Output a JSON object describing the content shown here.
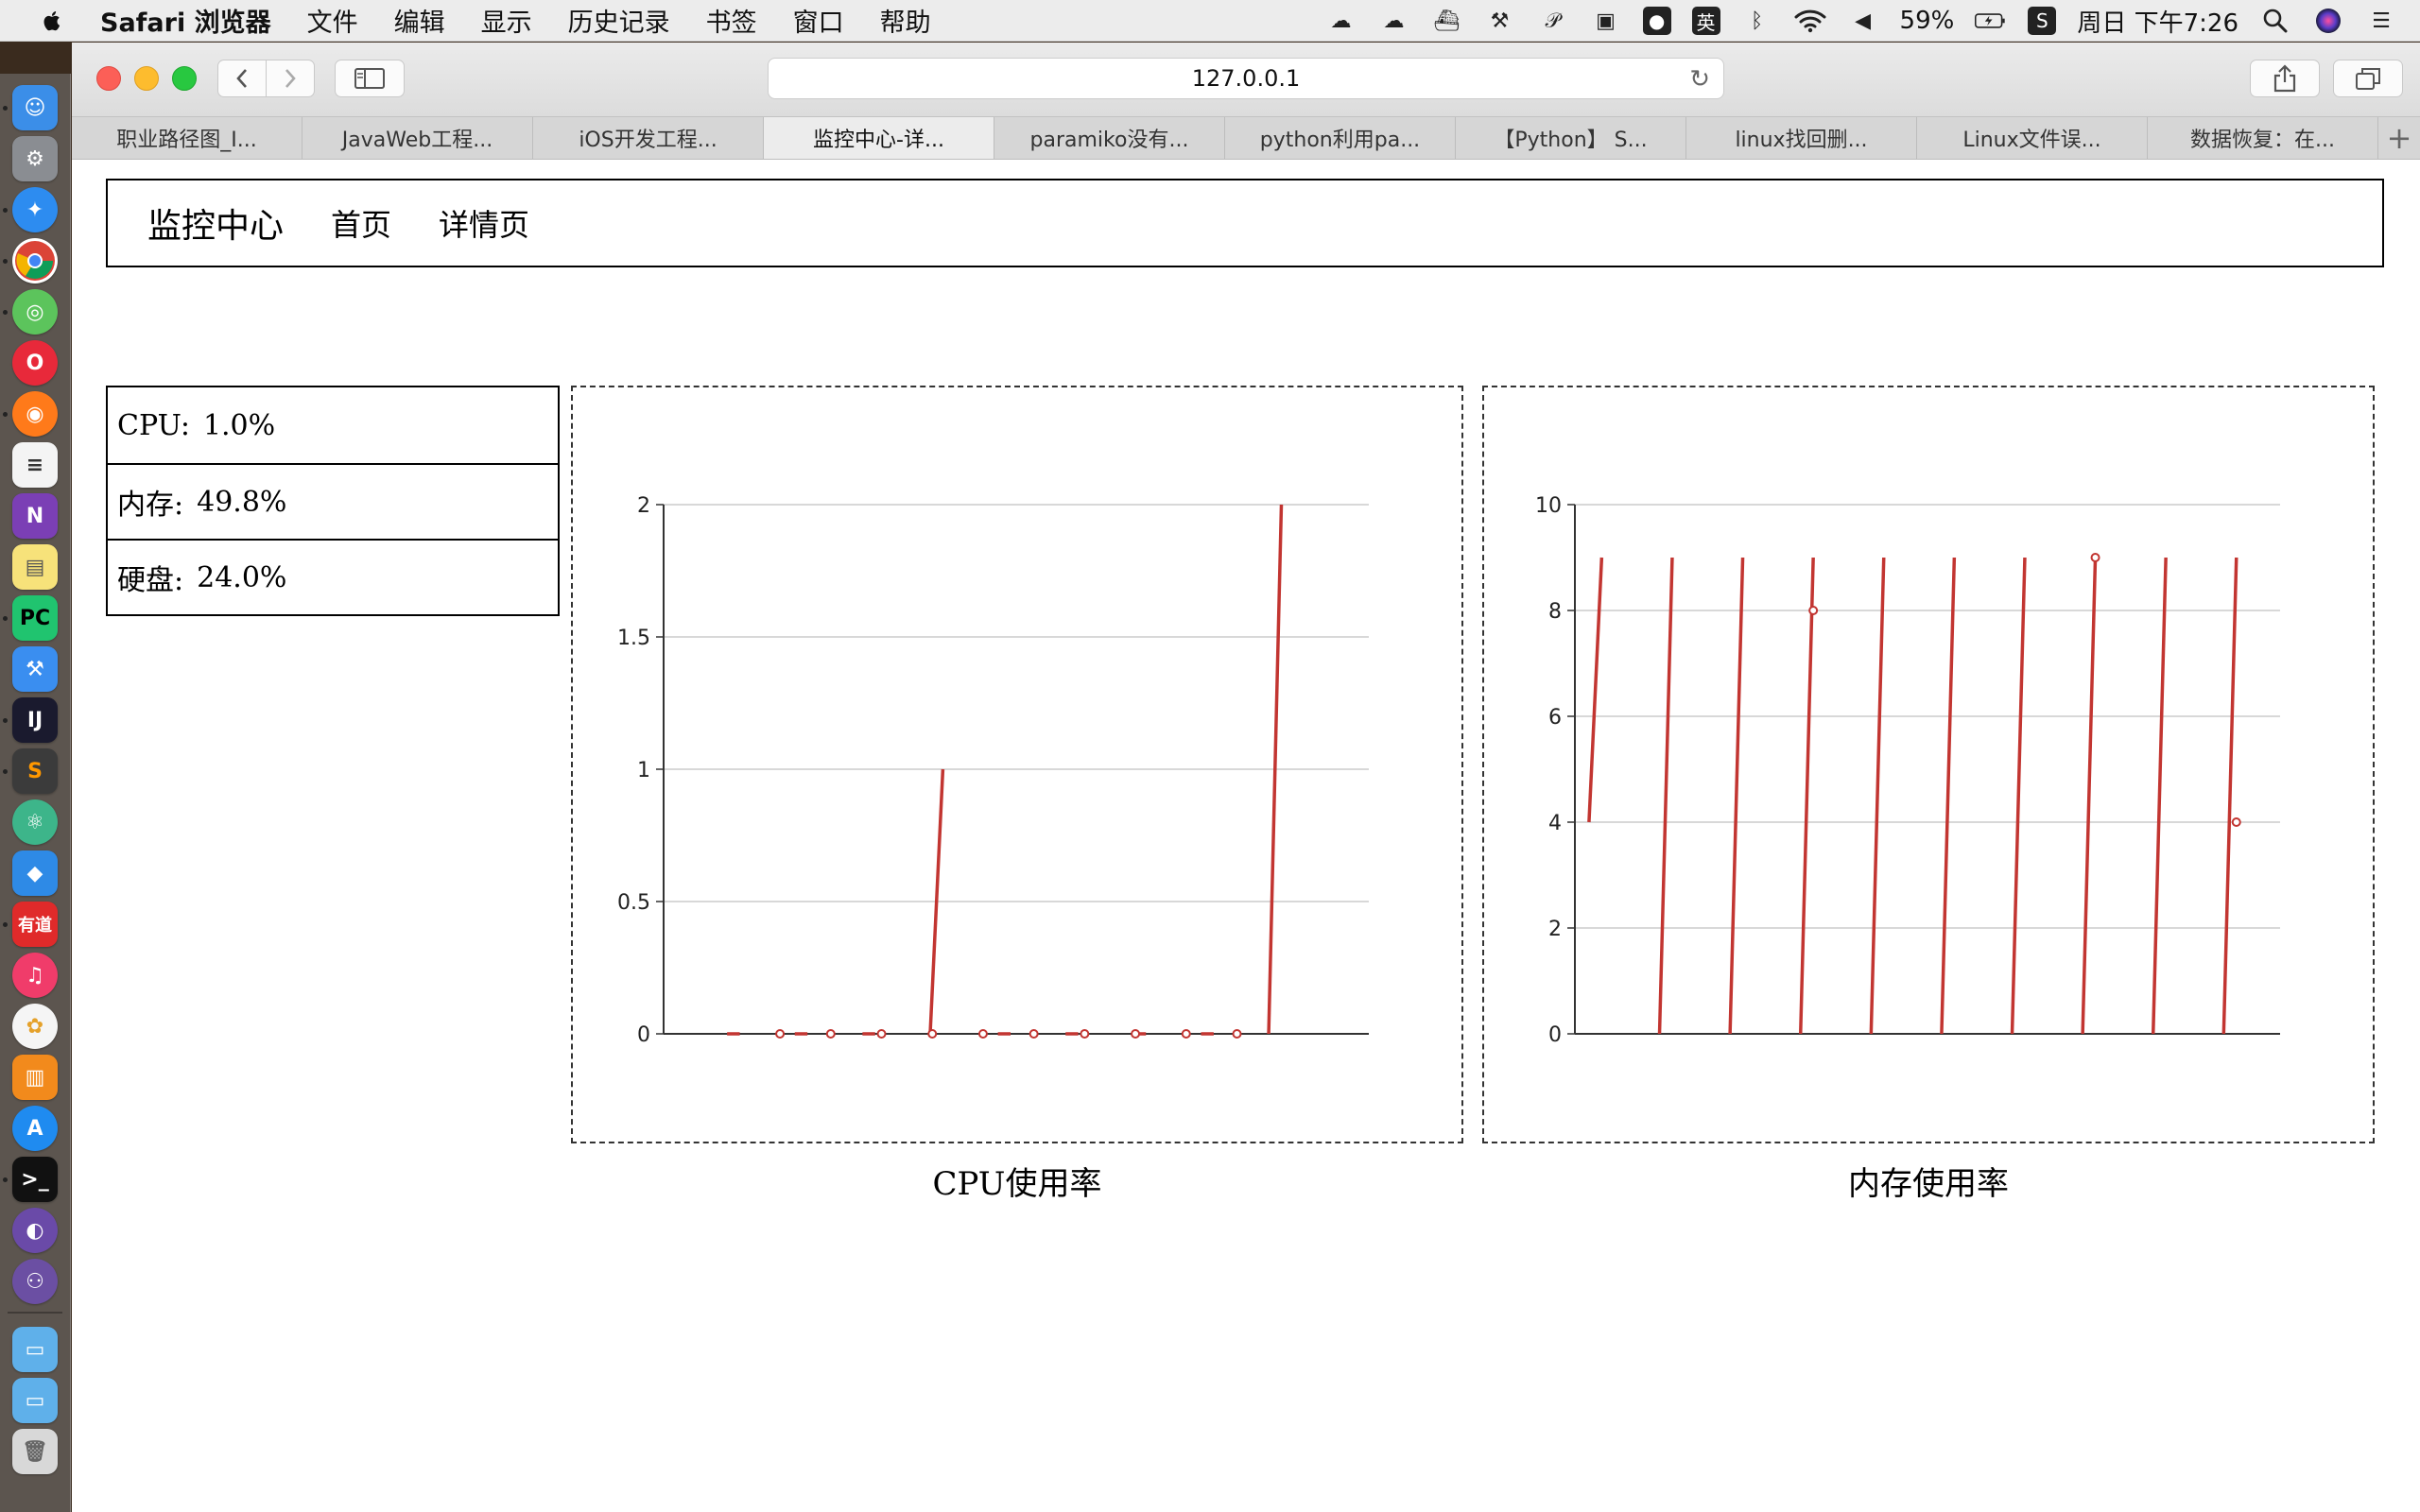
{
  "menubar": {
    "app_name": "Safari 浏览器",
    "items": [
      "文件",
      "编辑",
      "显示",
      "历史记录",
      "书签",
      "窗口",
      "帮助"
    ],
    "battery": "59%",
    "clock": "周日 下午7:26",
    "input_method": "英"
  },
  "browser": {
    "url": "127.0.0.1",
    "tabs": [
      {
        "label": "职业路径图_I..."
      },
      {
        "label": "JavaWeb工程..."
      },
      {
        "label": "iOS开发工程..."
      },
      {
        "label": "监控中心-详..."
      },
      {
        "label": "paramiko没有..."
      },
      {
        "label": "python利用pa..."
      },
      {
        "label": "【Python】 S..."
      },
      {
        "label": "linux找回删..."
      },
      {
        "label": "Linux文件误..."
      },
      {
        "label": "数据恢复：在..."
      }
    ],
    "active_tab": 3
  },
  "nav": {
    "brand": "监控中心",
    "links": [
      "首页",
      "详情页"
    ]
  },
  "stats": [
    {
      "label": "CPU:",
      "value": "1.0%"
    },
    {
      "label": "内存:",
      "value": "49.8%"
    },
    {
      "label": "硬盘:",
      "value": "24.0%"
    }
  ],
  "colors": {
    "series": "#c23531",
    "grid": "#cccccc",
    "axis": "#333333"
  },
  "chart_data": [
    {
      "type": "line",
      "caption": "CPU使用率",
      "ylim": [
        0,
        2
      ],
      "yticks": [
        "0",
        "0.5",
        "1",
        "1.5",
        "2"
      ],
      "ytick_values": [
        0,
        0.5,
        1,
        1.5,
        2
      ],
      "grid": true,
      "segments": [
        {
          "from": 0,
          "to": 0
        },
        {
          "from": 0,
          "to": 0
        },
        {
          "from": 0,
          "to": 0
        },
        {
          "from": 0,
          "to": 1
        },
        {
          "from": 0,
          "to": 0
        },
        {
          "from": 0,
          "to": 0
        },
        {
          "from": 0,
          "to": 0
        },
        {
          "from": 0,
          "to": 0
        },
        {
          "from": 0,
          "to": 2
        }
      ],
      "markers": [
        0,
        0,
        0,
        0,
        0,
        0,
        0,
        0,
        0,
        0
      ]
    },
    {
      "type": "line",
      "caption": "内存使用率",
      "ylim": [
        0,
        10
      ],
      "yticks": [
        "0",
        "2",
        "4",
        "6",
        "8",
        "10"
      ],
      "ytick_values": [
        0,
        2,
        4,
        6,
        8,
        10
      ],
      "grid": true,
      "segments": [
        {
          "from": 4,
          "to": 9
        },
        {
          "from": 0,
          "to": 9
        },
        {
          "from": 0,
          "to": 9
        },
        {
          "from": 0,
          "to": 9
        },
        {
          "from": 0,
          "to": 9
        },
        {
          "from": 0,
          "to": 9
        },
        {
          "from": 0,
          "to": 9
        },
        {
          "from": 0,
          "to": 9
        },
        {
          "from": 0,
          "to": 9
        },
        {
          "from": 0,
          "to": 9
        }
      ],
      "markers": [
        null,
        null,
        null,
        8,
        null,
        null,
        null,
        9,
        null,
        4
      ]
    }
  ]
}
